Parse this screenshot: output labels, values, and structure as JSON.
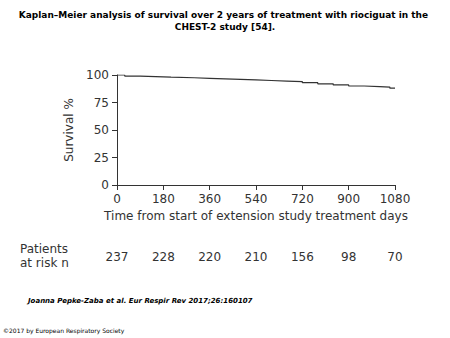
{
  "chart_data": {
    "type": "line",
    "title": "Kaplan–Meier analysis of survival over 2 years of treatment with riociguat in the CHEST-2 study [54].",
    "x_label": "Time from start of extension study treatment days",
    "y_label": "Survival %",
    "x": [
      0,
      30,
      90,
      150,
      210,
      300,
      360,
      420,
      480,
      540,
      600,
      660,
      720,
      780,
      840,
      900,
      960,
      1020,
      1060,
      1080
    ],
    "values": [
      100,
      99,
      98.5,
      98,
      97.5,
      97,
      96.5,
      96,
      95.5,
      95,
      94.5,
      94,
      93,
      92,
      91,
      90,
      89.5,
      89,
      88,
      87.5
    ],
    "color": "#333333",
    "line_style": "step",
    "xlim": [
      0,
      1080
    ],
    "xticks": [
      0,
      180,
      360,
      540,
      720,
      900,
      1080
    ],
    "ylim": [
      0,
      100
    ],
    "yticks": [
      0,
      25,
      50,
      75,
      100
    ],
    "grid": false,
    "risk_table": {
      "label": "Patients at risk n",
      "x": [
        0,
        180,
        360,
        540,
        720,
        900,
        1080
      ],
      "values": [
        237,
        228,
        220,
        210,
        156,
        98,
        70
      ]
    },
    "source": "Joanna Pepke-Zaba et al. Eur Respir Rev 2017;26:160107",
    "copyright": "©2017 by European Respiratory Society"
  }
}
